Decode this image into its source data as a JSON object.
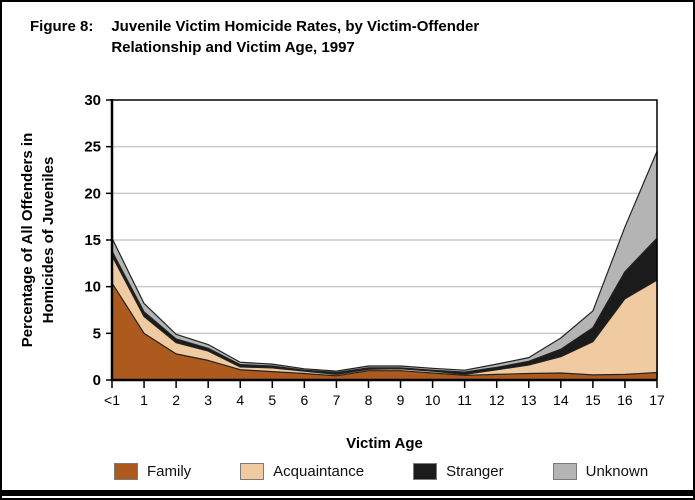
{
  "figure": {
    "label": "Figure 8:",
    "title": "Juvenile Victim Homicide Rates, by Victim-Offender Relationship and Victim Age, 1997"
  },
  "chart_data": {
    "type": "area",
    "stacked": true,
    "title": "Juvenile Victim Homicide Rates, by Victim-Offender Relationship and Victim Age, 1997",
    "xlabel": "Victim Age",
    "ylabel_lines": [
      "Percentage of All Offenders in",
      "Homicides of Juveniles"
    ],
    "categories": [
      "<1",
      "1",
      "2",
      "3",
      "4",
      "5",
      "6",
      "7",
      "8",
      "9",
      "10",
      "11",
      "12",
      "13",
      "14",
      "15",
      "16",
      "17"
    ],
    "series": [
      {
        "name": "Family",
        "color": "#AC5A1E",
        "values": [
          10.4,
          5.0,
          2.8,
          2.1,
          1.1,
          0.9,
          0.7,
          0.45,
          1.0,
          1.0,
          0.75,
          0.5,
          0.6,
          0.7,
          0.75,
          0.55,
          0.6,
          0.8
        ]
      },
      {
        "name": "Acquaintance",
        "color": "#F0CBA2",
        "values": [
          2.9,
          1.8,
          1.2,
          1.0,
          0.3,
          0.4,
          0.25,
          0.15,
          0.15,
          0.2,
          0.2,
          0.1,
          0.5,
          0.9,
          1.75,
          3.55,
          8.1,
          9.9
        ]
      },
      {
        "name": "Stranger",
        "color": "#1B1B1B",
        "values": [
          0.5,
          0.5,
          0.4,
          0.3,
          0.25,
          0.2,
          0.1,
          0.2,
          0.15,
          0.1,
          0.1,
          0.25,
          0.25,
          0.4,
          0.8,
          1.5,
          2.9,
          4.5
        ]
      },
      {
        "name": "Unknown",
        "color": "#B4B4B4",
        "values": [
          1.4,
          0.9,
          0.5,
          0.4,
          0.25,
          0.2,
          0.15,
          0.15,
          0.2,
          0.2,
          0.2,
          0.2,
          0.35,
          0.4,
          1.2,
          1.8,
          4.8,
          9.3
        ]
      }
    ],
    "ylim": [
      0,
      30
    ],
    "yticks": [
      0,
      5,
      10,
      15,
      20,
      25,
      30
    ],
    "grid": true,
    "legend_position": "bottom",
    "colors": {
      "grid_line": "#c8c8c8",
      "axis": "#000000",
      "area_outline": "#222222"
    }
  }
}
